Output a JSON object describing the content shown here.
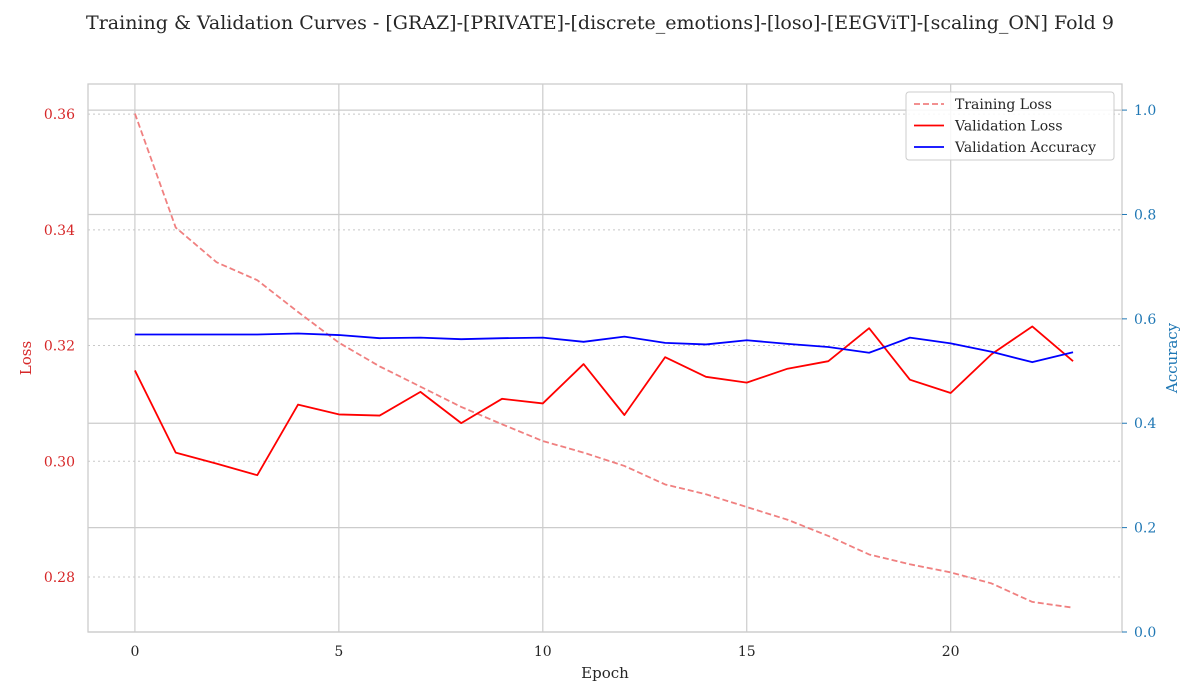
{
  "chart_data": {
    "type": "line",
    "title": "Training & Validation Curves - [GRAZ]-[PRIVATE]-[discrete_emotions]-[loso]-[EEGViT]-[scaling_ON] Fold 9",
    "xlabel": "Epoch",
    "ylabel_left": "Loss",
    "ylabel_right": "Accuracy",
    "xlim": [
      -1.15,
      24.2
    ],
    "ylim_left": [
      0.2705,
      0.3652
    ],
    "ylim_right": [
      0.0,
      1.05
    ],
    "x_ticks": [
      0,
      5,
      10,
      15,
      20
    ],
    "y_ticks_left": [
      0.28,
      0.3,
      0.32,
      0.34,
      0.36
    ],
    "y_ticks_right": [
      0.0,
      0.2,
      0.4,
      0.6,
      0.8,
      1.0
    ],
    "x_tick_labels": [
      "0",
      "5",
      "10",
      "15",
      "20"
    ],
    "y_tick_labels_left": [
      "0.28",
      "0.30",
      "0.32",
      "0.34",
      "0.36"
    ],
    "y_tick_labels_right": [
      "0.0",
      "0.2",
      "0.4",
      "0.6",
      "0.8",
      "1.0"
    ],
    "x": [
      0,
      1,
      2,
      3,
      4,
      5,
      6,
      7,
      8,
      9,
      10,
      11,
      12,
      13,
      14,
      15,
      16,
      17,
      18,
      19,
      20,
      21,
      22,
      23
    ],
    "series": [
      {
        "name": "Training Loss",
        "axis": "left",
        "color": "#f08080",
        "style": "dashed",
        "values": [
          0.3601,
          0.3404,
          0.3344,
          0.3313,
          0.3258,
          0.3205,
          0.3164,
          0.3129,
          0.3094,
          0.3064,
          0.3035,
          0.3015,
          0.2992,
          0.296,
          0.2943,
          0.2921,
          0.2899,
          0.2871,
          0.2839,
          0.2822,
          0.2808,
          0.2789,
          0.2757,
          0.2747
        ]
      },
      {
        "name": "Validation Loss",
        "axis": "left",
        "color": "#ff0000",
        "style": "solid",
        "values": [
          0.3157,
          0.3015,
          0.2996,
          0.2976,
          0.3098,
          0.3081,
          0.3079,
          0.312,
          0.3066,
          0.3108,
          0.31,
          0.3168,
          0.308,
          0.318,
          0.3146,
          0.3136,
          0.316,
          0.3173,
          0.323,
          0.3141,
          0.3118,
          0.3185,
          0.3233,
          0.3173
        ]
      },
      {
        "name": "Validation Accuracy",
        "axis": "right",
        "color": "#0000ff",
        "style": "solid",
        "values": [
          0.57,
          0.57,
          0.57,
          0.57,
          0.572,
          0.569,
          0.563,
          0.564,
          0.561,
          0.563,
          0.564,
          0.556,
          0.566,
          0.554,
          0.551,
          0.559,
          0.552,
          0.546,
          0.535,
          0.564,
          0.553,
          0.537,
          0.517,
          0.536
        ]
      }
    ],
    "legend_position": "top-right",
    "grid": true,
    "colors": {
      "left_axis": "#d62728",
      "right_axis": "#1f77b4",
      "grid": "#cccccc",
      "frame": "#cccccc"
    }
  }
}
